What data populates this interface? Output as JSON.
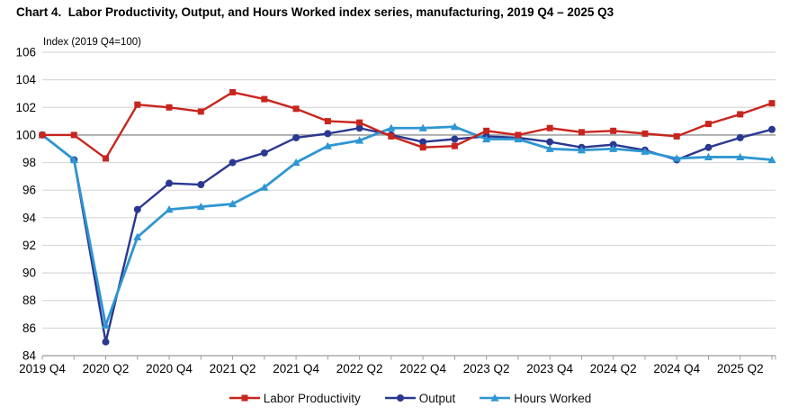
{
  "header": {
    "title": "Chart 4.  Labor Productivity, Output, and Hours Worked index series, manufacturing, 2019 Q4 – 2025 Q3"
  },
  "chart_data": {
    "type": "line",
    "title": "Chart 4. Labor Productivity, Output, and Hours Worked index series, manufacturing, 2019 Q4 – 2025 Q3",
    "axis_note": "Index (2019 Q4=100)",
    "ylabel": "Index (2019 Q4=100)",
    "ylim": [
      84,
      106
    ],
    "ytick_step": 2,
    "yticks": [
      84,
      86,
      88,
      90,
      92,
      94,
      96,
      98,
      100,
      102,
      104,
      106
    ],
    "emphasized_gridline": 100,
    "grid": "horizontal",
    "legend_position": "bottom",
    "x": [
      "2019 Q4",
      "2020 Q1",
      "2020 Q2",
      "2020 Q3",
      "2020 Q4",
      "2021 Q1",
      "2021 Q2",
      "2021 Q3",
      "2021 Q4",
      "2022 Q1",
      "2022 Q2",
      "2022 Q3",
      "2022 Q4",
      "2023 Q1",
      "2023 Q2",
      "2023 Q3",
      "2023 Q4",
      "2024 Q1",
      "2024 Q2",
      "2024 Q3",
      "2024 Q4",
      "2025 Q1",
      "2025 Q2",
      "2025 Q3"
    ],
    "x_tick_labels": [
      "2019 Q4",
      "2020 Q2",
      "2020 Q4",
      "2021 Q2",
      "2021 Q4",
      "2022 Q2",
      "2022 Q4",
      "2023 Q2",
      "2023 Q4",
      "2024 Q2",
      "2024 Q4",
      "2025 Q2"
    ],
    "series": [
      {
        "name": "Labor Productivity",
        "marker": "square",
        "color": "#c8251e",
        "values": [
          100.0,
          100.0,
          98.3,
          102.2,
          102.0,
          101.7,
          103.1,
          102.6,
          101.9,
          101.0,
          100.9,
          99.9,
          99.1,
          99.2,
          100.3,
          100.0,
          100.5,
          100.2,
          100.3,
          100.1,
          99.9,
          100.8,
          101.5,
          102.3
        ]
      },
      {
        "name": "Output",
        "marker": "circle",
        "color": "#2a3890",
        "values": [
          100.0,
          98.2,
          85.0,
          94.6,
          96.5,
          96.4,
          98.0,
          98.7,
          99.8,
          100.1,
          100.5,
          100.0,
          99.5,
          99.7,
          99.9,
          99.8,
          99.5,
          99.1,
          99.3,
          98.9,
          98.2,
          99.1,
          99.8,
          100.4
        ]
      },
      {
        "name": "Hours Worked",
        "marker": "triangle",
        "color": "#2e96d2",
        "values": [
          100.0,
          98.2,
          86.2,
          92.6,
          94.6,
          94.8,
          95.0,
          96.2,
          98.0,
          99.2,
          99.6,
          100.5,
          100.5,
          100.6,
          99.7,
          99.7,
          99.0,
          98.9,
          99.0,
          98.8,
          98.3,
          98.4,
          98.4,
          98.2
        ]
      }
    ]
  },
  "colors": {
    "gridline": "#d9d9d9",
    "gridline_emphasized": "#aeaeae",
    "axis": "#9c9c9c",
    "text": "#000000"
  }
}
